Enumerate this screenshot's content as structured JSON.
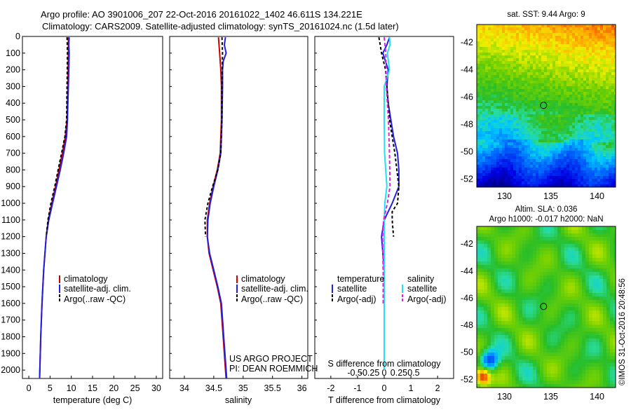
{
  "header": {
    "title_line1": "Argo profile: AO 3901006_207 22-Oct-2016 20161022_1402 46.611S 134.221E",
    "title_line2": "Climatology: CARS2009. Satellite-adjusted climatology: synTS_20161024.nc (1.5d later)"
  },
  "colors": {
    "climatology": "#cc0000",
    "satellite": "#1f1fe6",
    "argo": "#000000",
    "salinity_satellite": "#22e0f0",
    "salinity_argo": "#e020e0"
  },
  "credits": {
    "project": "US ARGO PROJECT",
    "pi": "PI: DEAN ROEMMICH",
    "imos": "©IMOS 31-Oct-2016 20:48:56"
  },
  "chart_data": [
    {
      "id": "temperature",
      "type": "line",
      "xlabel": "temperature (deg C)",
      "ylabel": "",
      "xlim": [
        -1.5,
        31.5
      ],
      "ylim": [
        2050,
        0
      ],
      "xticks": [
        0,
        5,
        10,
        15,
        20,
        25,
        30
      ],
      "xtick_labels": [
        "0",
        "5",
        "10",
        "15",
        "20",
        "25",
        "30"
      ],
      "yticks": [
        0,
        100,
        200,
        300,
        400,
        500,
        600,
        700,
        800,
        900,
        1000,
        1100,
        1200,
        1300,
        1400,
        1500,
        1600,
        1700,
        1800,
        1900,
        2000
      ],
      "ytick_labels": [
        "0",
        "100",
        "200",
        "300",
        "400",
        "500",
        "600",
        "700",
        "800",
        "900",
        "1000",
        "1100",
        "1200",
        "1300",
        "1400",
        "1500",
        "1600",
        "1700",
        "1800",
        "1900",
        "2000"
      ],
      "legend": [
        "climatology",
        "satellite-adj. clim.",
        "Argo(..raw -QC)"
      ],
      "legend_position": "lower-right",
      "series": [
        {
          "name": "climatology",
          "color": "#cc0000",
          "dash": "",
          "depth": [
            5,
            100,
            300,
            500,
            600,
            700,
            800,
            900,
            1000,
            1100,
            1200,
            1400,
            1600,
            1800,
            2000,
            2050
          ],
          "values": [
            9.3,
            9.3,
            9.2,
            9.0,
            8.6,
            7.9,
            7.1,
            6.3,
            5.4,
            4.6,
            4.1,
            3.5,
            3.1,
            2.8,
            2.6,
            2.55
          ]
        },
        {
          "name": "satellite-adj. clim.",
          "color": "#1f1fe6",
          "dash": "",
          "depth": [
            5,
            50,
            100,
            200,
            300,
            400,
            500,
            600,
            700,
            800,
            900,
            1000,
            1100,
            1200,
            1400,
            1600,
            1800,
            2000,
            2050
          ],
          "values": [
            9.5,
            9.4,
            9.5,
            9.4,
            9.3,
            9.2,
            9.1,
            8.9,
            8.2,
            7.4,
            6.5,
            5.6,
            4.7,
            4.1,
            3.5,
            3.1,
            2.8,
            2.6,
            2.55
          ]
        },
        {
          "name": "Argo(..raw -QC)",
          "color": "#000000",
          "dash": "4,3",
          "depth": [
            5,
            100,
            300,
            500,
            600,
            700,
            800,
            900,
            1000,
            1100,
            1200
          ],
          "values": [
            9.0,
            9.1,
            9.0,
            8.9,
            8.5,
            7.7,
            6.9,
            6.1,
            5.2,
            4.5,
            4.1
          ]
        }
      ]
    },
    {
      "id": "salinity",
      "type": "line",
      "xlabel": "salinity",
      "xlim": [
        33.75,
        36.1
      ],
      "ylim": [
        2050,
        0
      ],
      "xticks": [
        34,
        34.5,
        35,
        35.5,
        36
      ],
      "xtick_labels": [
        "34",
        "34.5",
        "35",
        "35.5",
        "36"
      ],
      "legend": [
        "climatology",
        "satellite-adj. clim.",
        "Argo(..raw -QC)"
      ],
      "legend_position": "lower-right",
      "series": [
        {
          "name": "climatology",
          "color": "#cc0000",
          "dash": "",
          "depth": [
            5,
            100,
            200,
            300,
            500,
            700,
            800,
            900,
            1000,
            1100,
            1200,
            1300,
            1400,
            1500,
            1600,
            1800,
            2000,
            2050
          ],
          "values": [
            34.58,
            34.6,
            34.62,
            34.63,
            34.63,
            34.61,
            34.56,
            34.49,
            34.43,
            34.39,
            34.39,
            34.42,
            34.49,
            34.56,
            34.62,
            34.66,
            34.7,
            34.71
          ]
        },
        {
          "name": "satellite-adj. clim.",
          "color": "#1f1fe6",
          "dash": "",
          "depth": [
            5,
            50,
            100,
            150,
            200,
            300,
            500,
            700,
            800,
            900,
            1000,
            1100,
            1200,
            1300,
            1400,
            1500,
            1600,
            1800,
            2000,
            2050
          ],
          "values": [
            34.7,
            34.68,
            34.71,
            34.66,
            34.65,
            34.65,
            34.64,
            34.62,
            34.57,
            34.5,
            34.44,
            34.4,
            34.39,
            34.43,
            34.5,
            34.57,
            34.63,
            34.67,
            34.71,
            34.72
          ]
        },
        {
          "name": "Argo(..raw -QC)",
          "color": "#000000",
          "dash": "4,3",
          "depth": [
            5,
            100,
            300,
            500,
            700,
            800,
            900,
            1000,
            1100,
            1200
          ],
          "values": [
            34.64,
            34.65,
            34.64,
            34.64,
            34.62,
            34.57,
            34.48,
            34.4,
            34.35,
            34.36
          ]
        }
      ]
    },
    {
      "id": "difference",
      "type": "line",
      "xlabel": "T difference from climatology",
      "xlabel_top": "S difference from climatology",
      "xlim": [
        -2.6,
        2.6
      ],
      "ylim": [
        2050,
        0
      ],
      "xticks": [
        -2,
        -1,
        0,
        1,
        2
      ],
      "xtick_labels": [
        "-2",
        "-1",
        "0",
        "1",
        "2"
      ],
      "xticks_top": [
        -0.5,
        -0.25,
        0,
        0.25,
        0.5
      ],
      "xtick_labels_top": [
        "-0.5",
        "-0.25",
        "0",
        "0.25",
        "0.5"
      ],
      "legend_titles": [
        "temperature",
        "salinity"
      ],
      "legend": [
        "satellite",
        "Argo(-adj)",
        "satellite",
        "Argo(-adj)"
      ],
      "legend_position": "lower-center",
      "series": [
        {
          "name": "satellite (T)",
          "color": "#1f1fe6",
          "dash": "",
          "depth": [
            5,
            50,
            100,
            200,
            300,
            400,
            500,
            600,
            700,
            800,
            900,
            1000,
            1100,
            1200,
            1400,
            1600,
            1800,
            2000
          ],
          "values": [
            0.2,
            0.1,
            -0.05,
            0.15,
            0.1,
            0.15,
            0.25,
            0.35,
            0.5,
            0.55,
            0.55,
            0.3,
            0.0,
            -0.1,
            0.0,
            0.0,
            0.0,
            0.0
          ]
        },
        {
          "name": "Argo(-adj) (T)",
          "color": "#000000",
          "dash": "4,3",
          "depth": [
            5,
            50,
            100,
            200,
            300,
            500,
            700,
            900,
            1000,
            1050,
            1100,
            1200
          ],
          "values": [
            -0.2,
            -0.15,
            -0.1,
            0.05,
            0.1,
            0.2,
            0.4,
            0.55,
            0.5,
            0.3,
            0.3,
            0.35
          ]
        },
        {
          "name": "satellite (S)",
          "color": "#22e0f0",
          "dash": "",
          "depth": [
            5,
            50,
            100,
            200,
            300,
            500,
            700,
            900,
            1000,
            1100,
            1200,
            1400,
            1600,
            1800,
            2000
          ],
          "values": [
            0.05,
            0.055,
            0.03,
            0.05,
            0.0,
            0.0,
            0.003,
            0.025,
            0.006,
            0.0,
            0.0,
            0.0,
            0.0,
            0.0,
            0.0
          ]
        },
        {
          "name": "Argo(-adj) (S)",
          "color": "#e020e0",
          "dash": "5,3",
          "depth": [
            5,
            100,
            300,
            500,
            700,
            900,
            1000,
            1100,
            1200,
            1400,
            1600
          ],
          "values": [
            0.0,
            0.015,
            0.02,
            0.04,
            0.05,
            0.055,
            0.03,
            -0.005,
            -0.015,
            -0.01,
            -0.01
          ]
        }
      ]
    },
    {
      "id": "sst_map",
      "type": "heatmap",
      "title": "sat. SST: 9.44 Argo: 9",
      "xlim": [
        127,
        142
      ],
      "ylim": [
        -52.6,
        -40.7
      ],
      "xticks": [
        130,
        135,
        140
      ],
      "xtick_labels": [
        "130",
        "135",
        "140"
      ],
      "yticks": [
        -42,
        -44,
        -46,
        -48,
        -50,
        -52
      ],
      "ytick_labels": [
        "-42",
        "-44",
        "-46",
        "-48",
        "-50",
        "-52"
      ],
      "marker": {
        "lon": 134.221,
        "lat": -46.611
      }
    },
    {
      "id": "sla_map",
      "type": "heatmap",
      "title_line1": "Altim. SLA: 0.036",
      "title_line2": "Argo h1000: -0.017 h2000: NaN",
      "xlim": [
        127,
        142
      ],
      "ylim": [
        -52.6,
        -40.7
      ],
      "xticks": [
        130,
        135,
        140
      ],
      "xtick_labels": [
        "130",
        "135",
        "140"
      ],
      "yticks": [
        -42,
        -44,
        -46,
        -48,
        -50,
        -52
      ],
      "ytick_labels": [
        "-42",
        "-44",
        "-46",
        "-48",
        "-50",
        "-52"
      ],
      "marker": {
        "lon": 134.221,
        "lat": -46.611
      }
    }
  ]
}
